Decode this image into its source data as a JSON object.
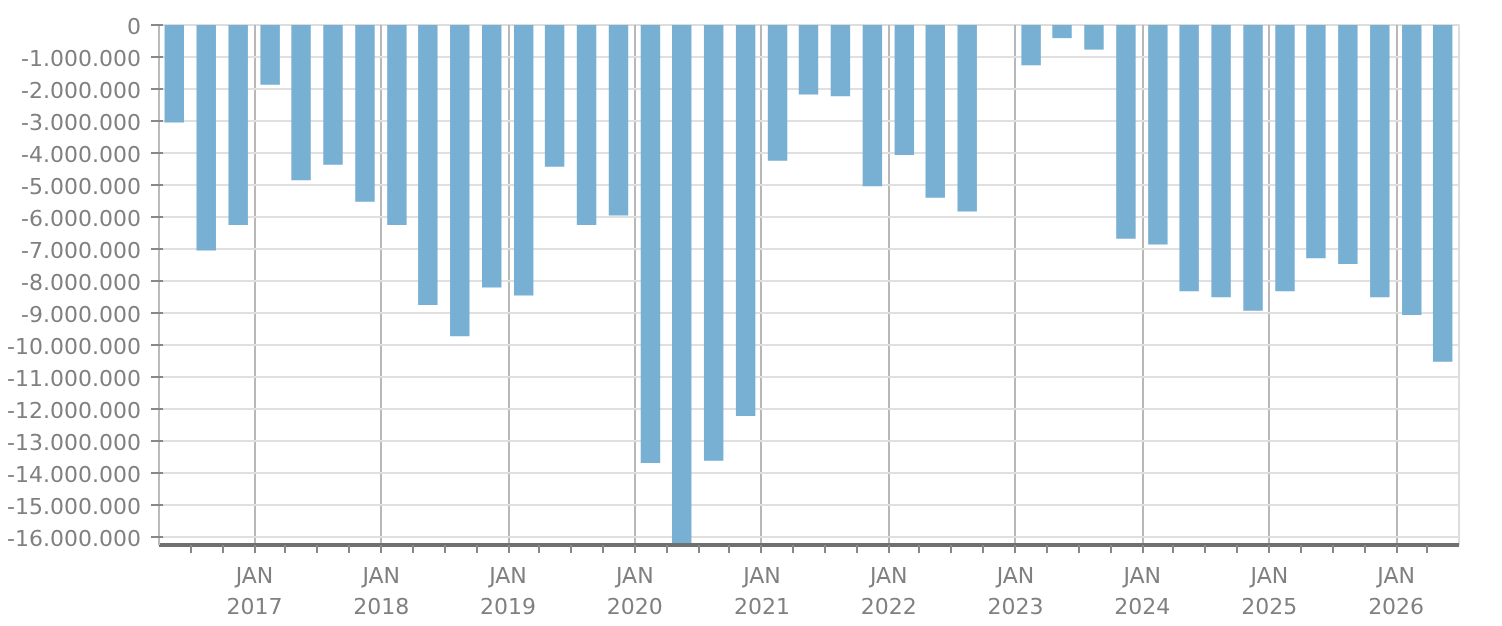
{
  "chart_data": {
    "type": "bar",
    "color": "#78b0d3",
    "x": [
      "2016-05-15",
      "2016-08-15",
      "2016-11-15",
      "2017-02-15",
      "2017-05-15",
      "2017-08-15",
      "2017-11-15",
      "2018-02-15",
      "2018-05-15",
      "2018-08-15",
      "2018-11-15",
      "2019-02-15",
      "2019-05-15",
      "2019-08-15",
      "2019-11-15",
      "2020-02-15",
      "2020-05-15",
      "2020-08-15",
      "2020-11-15",
      "2021-02-15",
      "2021-05-15",
      "2021-08-15",
      "2021-11-15",
      "2022-02-15",
      "2022-05-15",
      "2022-08-15",
      "2022-11-15",
      "2023-02-15",
      "2023-05-15",
      "2023-08-15",
      "2023-11-15",
      "2024-02-15",
      "2024-05-15",
      "2024-08-15",
      "2024-11-15",
      "2025-02-15",
      "2025-05-15",
      "2025-08-15",
      "2025-11-15",
      "2026-02-15",
      "2026-05-15"
    ],
    "values": [
      -3050000,
      -7050000,
      -6250000,
      -1870000,
      -4850000,
      -4370000,
      -5520000,
      -6250000,
      -8750000,
      -9730000,
      -8200000,
      -8450000,
      -4430000,
      -6250000,
      -5950000,
      -13690000,
      -16200000,
      -13620000,
      -12220000,
      -4240000,
      -2170000,
      -2230000,
      -5040000,
      -4060000,
      -5400000,
      -5830000,
      null,
      -1260000,
      -410000,
      -770000,
      -6680000,
      -6860000,
      -8320000,
      -8510000,
      -8930000,
      -8320000,
      -7290000,
      -7470000,
      -8510000,
      -9060000,
      -10520000
    ],
    "xlim": [
      "2016-04-01",
      "2026-07-01"
    ],
    "xticks": [
      {
        "value": "2016-07-01",
        "label": null
      },
      {
        "value": "2016-10-01",
        "label": null
      },
      {
        "value": "2017-01-01",
        "label": "JAN\n2017"
      },
      {
        "value": "2017-04-01",
        "label": null
      },
      {
        "value": "2017-07-01",
        "label": null
      },
      {
        "value": "2017-10-01",
        "label": null
      },
      {
        "value": "2018-01-01",
        "label": "JAN\n2018"
      },
      {
        "value": "2018-04-01",
        "label": null
      },
      {
        "value": "2018-07-01",
        "label": null
      },
      {
        "value": "2018-10-01",
        "label": null
      },
      {
        "value": "2019-01-01",
        "label": "JAN\n2019"
      },
      {
        "value": "2019-04-01",
        "label": null
      },
      {
        "value": "2019-07-01",
        "label": null
      },
      {
        "value": "2019-10-01",
        "label": null
      },
      {
        "value": "2020-01-01",
        "label": "JAN\n2020"
      },
      {
        "value": "2020-04-01",
        "label": null
      },
      {
        "value": "2020-07-01",
        "label": null
      },
      {
        "value": "2020-10-01",
        "label": null
      },
      {
        "value": "2021-01-01",
        "label": "JAN\n2021"
      },
      {
        "value": "2021-04-01",
        "label": null
      },
      {
        "value": "2021-07-01",
        "label": null
      },
      {
        "value": "2021-10-01",
        "label": null
      },
      {
        "value": "2022-01-01",
        "label": "JAN\n2022"
      },
      {
        "value": "2022-04-01",
        "label": null
      },
      {
        "value": "2022-07-01",
        "label": null
      },
      {
        "value": "2022-10-01",
        "label": null
      },
      {
        "value": "2023-01-01",
        "label": "JAN\n2023"
      },
      {
        "value": "2023-04-01",
        "label": null
      },
      {
        "value": "2023-07-01",
        "label": null
      },
      {
        "value": "2023-10-01",
        "label": null
      },
      {
        "value": "2024-01-01",
        "label": "JAN\n2024"
      },
      {
        "value": "2024-04-01",
        "label": null
      },
      {
        "value": "2024-07-01",
        "label": null
      },
      {
        "value": "2024-10-01",
        "label": null
      },
      {
        "value": "2025-01-01",
        "label": "JAN\n2025"
      },
      {
        "value": "2025-04-01",
        "label": null
      },
      {
        "value": "2025-07-01",
        "label": null
      },
      {
        "value": "2025-10-01",
        "label": null
      },
      {
        "value": "2026-01-01",
        "label": "JAN\n2026"
      },
      {
        "value": "2026-04-01",
        "label": null
      }
    ],
    "ylim": [
      -16250000,
      0
    ],
    "yticks": [
      {
        "value": 0,
        "label": "0"
      },
      {
        "value": -1000000,
        "label": "-1.000.000"
      },
      {
        "value": -2000000,
        "label": "-2.000.000"
      },
      {
        "value": -3000000,
        "label": "-3.000.000"
      },
      {
        "value": -4000000,
        "label": "-4.000.000"
      },
      {
        "value": -5000000,
        "label": "-5.000.000"
      },
      {
        "value": -6000000,
        "label": "-6.000.000"
      },
      {
        "value": -7000000,
        "label": "-7.000.000"
      },
      {
        "value": -8000000,
        "label": "-8.000.000"
      },
      {
        "value": -9000000,
        "label": "-9.000.000"
      },
      {
        "value": -10000000,
        "label": "-10.000.000"
      },
      {
        "value": -11000000,
        "label": "-11.000.000"
      },
      {
        "value": -12000000,
        "label": "-12.000.000"
      },
      {
        "value": -13000000,
        "label": "-13.000.000"
      },
      {
        "value": -14000000,
        "label": "-14.000.000"
      },
      {
        "value": -15000000,
        "label": "-15.000.000"
      },
      {
        "value": -16000000,
        "label": "-16.000.000"
      }
    ],
    "grid": true
  }
}
